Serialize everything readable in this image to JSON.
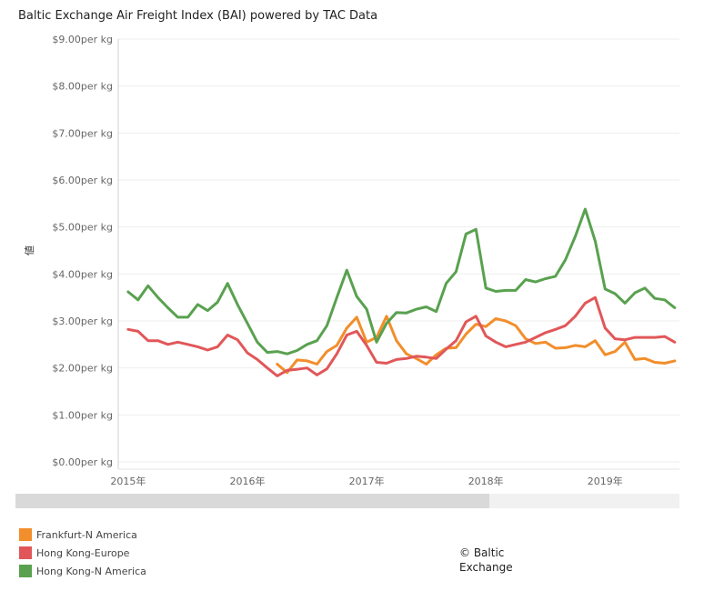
{
  "chart_data": {
    "type": "line",
    "title": "Baltic Exchange Air Freight Index (BAI) powered by TAC Data",
    "ylabel": "値",
    "xlabel": "",
    "ylim": [
      0,
      9
    ],
    "y_ticks": [
      "$0.00per kg",
      "$1.00per kg",
      "$2.00per kg",
      "$3.00per kg",
      "$4.00per kg",
      "$5.00per kg",
      "$6.00per kg",
      "$7.00per kg",
      "$8.00per kg",
      "$9.00per kg"
    ],
    "x_ticks": [
      "2015年",
      "2016年",
      "2017年",
      "2018年",
      "2019年"
    ],
    "grid": true,
    "legend_position": "bottom-left",
    "series": [
      {
        "name": "Frankfurt-N America",
        "color": "#f28e2b",
        "points": [
          [
            "2016-04",
            2.08
          ],
          [
            "2016-05",
            1.9
          ],
          [
            "2016-06",
            2.17
          ],
          [
            "2016-07",
            2.15
          ],
          [
            "2016-08",
            2.08
          ],
          [
            "2016-09",
            2.35
          ],
          [
            "2016-10",
            2.48
          ],
          [
            "2016-11",
            2.85
          ],
          [
            "2016-12",
            3.08
          ],
          [
            "2017-01",
            2.55
          ],
          [
            "2017-02",
            2.65
          ],
          [
            "2017-03",
            3.1
          ],
          [
            "2017-04",
            2.58
          ],
          [
            "2017-05",
            2.3
          ],
          [
            "2017-06",
            2.2
          ],
          [
            "2017-07",
            2.08
          ],
          [
            "2017-08",
            2.28
          ],
          [
            "2017-09",
            2.42
          ],
          [
            "2017-10",
            2.43
          ],
          [
            "2017-11",
            2.72
          ],
          [
            "2017-12",
            2.93
          ],
          [
            "2018-01",
            2.88
          ],
          [
            "2018-02",
            3.05
          ],
          [
            "2018-03",
            3.0
          ],
          [
            "2018-04",
            2.9
          ],
          [
            "2018-05",
            2.62
          ],
          [
            "2018-06",
            2.52
          ],
          [
            "2018-07",
            2.55
          ],
          [
            "2018-08",
            2.42
          ],
          [
            "2018-09",
            2.43
          ],
          [
            "2018-10",
            2.48
          ],
          [
            "2018-11",
            2.45
          ],
          [
            "2018-12",
            2.58
          ],
          [
            "2019-01",
            2.28
          ],
          [
            "2019-02",
            2.35
          ],
          [
            "2019-03",
            2.55
          ],
          [
            "2019-04",
            2.18
          ],
          [
            "2019-05",
            2.2
          ],
          [
            "2019-06",
            2.12
          ],
          [
            "2019-07",
            2.1
          ],
          [
            "2019-08",
            2.15
          ]
        ]
      },
      {
        "name": "Hong Kong-Europe",
        "color": "#e15759",
        "points": [
          [
            "2015-01",
            2.82
          ],
          [
            "2015-02",
            2.78
          ],
          [
            "2015-03",
            2.58
          ],
          [
            "2015-04",
            2.58
          ],
          [
            "2015-05",
            2.5
          ],
          [
            "2015-06",
            2.55
          ],
          [
            "2015-07",
            2.5
          ],
          [
            "2015-08",
            2.45
          ],
          [
            "2015-09",
            2.38
          ],
          [
            "2015-10",
            2.45
          ],
          [
            "2015-11",
            2.7
          ],
          [
            "2015-12",
            2.6
          ],
          [
            "2016-01",
            2.32
          ],
          [
            "2016-02",
            2.18
          ],
          [
            "2016-03",
            2.0
          ],
          [
            "2016-04",
            1.83
          ],
          [
            "2016-05",
            1.95
          ],
          [
            "2016-06",
            1.97
          ],
          [
            "2016-07",
            2.0
          ],
          [
            "2016-08",
            1.85
          ],
          [
            "2016-09",
            1.98
          ],
          [
            "2016-10",
            2.3
          ],
          [
            "2016-11",
            2.7
          ],
          [
            "2016-12",
            2.78
          ],
          [
            "2017-01",
            2.48
          ],
          [
            "2017-02",
            2.12
          ],
          [
            "2017-03",
            2.1
          ],
          [
            "2017-04",
            2.18
          ],
          [
            "2017-05",
            2.2
          ],
          [
            "2017-06",
            2.25
          ],
          [
            "2017-07",
            2.23
          ],
          [
            "2017-08",
            2.2
          ],
          [
            "2017-09",
            2.4
          ],
          [
            "2017-10",
            2.58
          ],
          [
            "2017-11",
            2.98
          ],
          [
            "2017-12",
            3.1
          ],
          [
            "2018-01",
            2.68
          ],
          [
            "2018-02",
            2.55
          ],
          [
            "2018-03",
            2.45
          ],
          [
            "2018-04",
            2.5
          ],
          [
            "2018-05",
            2.55
          ],
          [
            "2018-06",
            2.65
          ],
          [
            "2018-07",
            2.75
          ],
          [
            "2018-08",
            2.82
          ],
          [
            "2018-09",
            2.9
          ],
          [
            "2018-10",
            3.1
          ],
          [
            "2018-11",
            3.38
          ],
          [
            "2018-12",
            3.5
          ],
          [
            "2019-01",
            2.85
          ],
          [
            "2019-02",
            2.62
          ],
          [
            "2019-03",
            2.6
          ],
          [
            "2019-04",
            2.65
          ],
          [
            "2019-05",
            2.65
          ],
          [
            "2019-06",
            2.65
          ],
          [
            "2019-07",
            2.67
          ],
          [
            "2019-08",
            2.55
          ]
        ]
      },
      {
        "name": "Hong Kong-N America",
        "color": "#59a14f",
        "points": [
          [
            "2015-01",
            3.62
          ],
          [
            "2015-02",
            3.45
          ],
          [
            "2015-03",
            3.75
          ],
          [
            "2015-04",
            3.5
          ],
          [
            "2015-05",
            3.28
          ],
          [
            "2015-06",
            3.08
          ],
          [
            "2015-07",
            3.08
          ],
          [
            "2015-08",
            3.35
          ],
          [
            "2015-09",
            3.22
          ],
          [
            "2015-10",
            3.4
          ],
          [
            "2015-11",
            3.8
          ],
          [
            "2015-12",
            3.35
          ],
          [
            "2016-01",
            2.95
          ],
          [
            "2016-02",
            2.55
          ],
          [
            "2016-03",
            2.33
          ],
          [
            "2016-04",
            2.35
          ],
          [
            "2016-05",
            2.3
          ],
          [
            "2016-06",
            2.37
          ],
          [
            "2016-07",
            2.5
          ],
          [
            "2016-08",
            2.58
          ],
          [
            "2016-09",
            2.9
          ],
          [
            "2016-10",
            3.5
          ],
          [
            "2016-11",
            4.08
          ],
          [
            "2016-12",
            3.52
          ],
          [
            "2017-01",
            3.25
          ],
          [
            "2017-02",
            2.55
          ],
          [
            "2017-03",
            2.95
          ],
          [
            "2017-04",
            3.18
          ],
          [
            "2017-05",
            3.17
          ],
          [
            "2017-06",
            3.25
          ],
          [
            "2017-07",
            3.3
          ],
          [
            "2017-08",
            3.2
          ],
          [
            "2017-09",
            3.8
          ],
          [
            "2017-10",
            4.05
          ],
          [
            "2017-11",
            4.85
          ],
          [
            "2017-12",
            4.95
          ],
          [
            "2018-01",
            3.7
          ],
          [
            "2018-02",
            3.63
          ],
          [
            "2018-03",
            3.65
          ],
          [
            "2018-04",
            3.65
          ],
          [
            "2018-05",
            3.88
          ],
          [
            "2018-06",
            3.83
          ],
          [
            "2018-07",
            3.9
          ],
          [
            "2018-08",
            3.95
          ],
          [
            "2018-09",
            4.3
          ],
          [
            "2018-10",
            4.8
          ],
          [
            "2018-11",
            5.38
          ],
          [
            "2018-12",
            4.7
          ],
          [
            "2019-01",
            3.68
          ],
          [
            "2019-02",
            3.58
          ],
          [
            "2019-03",
            3.38
          ],
          [
            "2019-04",
            3.6
          ],
          [
            "2019-05",
            3.7
          ],
          [
            "2019-06",
            3.48
          ],
          [
            "2019-07",
            3.45
          ],
          [
            "2019-08",
            3.28
          ]
        ]
      }
    ]
  },
  "legend": {
    "items": [
      {
        "label": "Frankfurt-N America",
        "color": "#f28e2b"
      },
      {
        "label": "Hong Kong-Europe",
        "color": "#e15759"
      },
      {
        "label": "Hong Kong-N America",
        "color": "#59a14f"
      }
    ]
  },
  "copyright": {
    "line1": "© Baltic",
    "line2": "Exchange"
  }
}
